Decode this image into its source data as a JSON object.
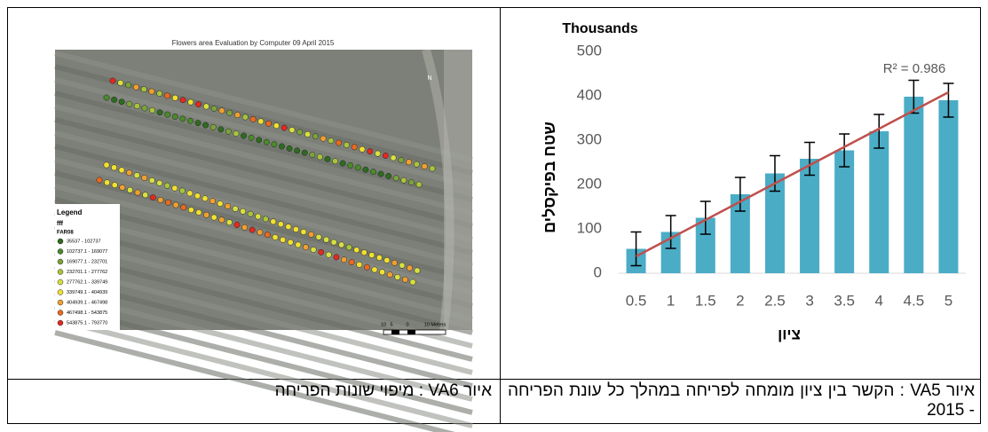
{
  "map": {
    "title": "Flowers area Evaluation by Computer 09 April 2015",
    "north": "N",
    "legend": {
      "title": "Legend",
      "layer": "fff",
      "field": "FAR08",
      "items": [
        "35537 - 102737",
        "102737.1 - 169077",
        "169077.1 - 232701",
        "232701.1 - 277762",
        "277762.1 - 339749",
        "339749.1 - 404939",
        "404939.1 - 467498",
        "467498.1 - 543875",
        "543875.1 - 793770"
      ]
    },
    "scale": [
      "10",
      "5",
      "0",
      "10 Meters"
    ]
  },
  "chart_data": {
    "type": "bar",
    "units": "Thousands",
    "y_label": "שטח בפיקסלים",
    "x_label": "ציון",
    "categories": [
      "0.5",
      "1",
      "1.5",
      "2",
      "2.5",
      "3",
      "3.5",
      "4",
      "4.5",
      "5"
    ],
    "values": [
      55,
      93,
      125,
      178,
      225,
      258,
      277,
      320,
      398,
      390
    ],
    "errors": [
      38,
      37,
      37,
      38,
      40,
      37,
      37,
      38,
      37,
      38
    ],
    "color": "#4bacc6",
    "trendline": {
      "values": [
        38,
        408
      ],
      "color": "#c0504d",
      "annotation": "R² = 0.986"
    },
    "ylim": [
      0,
      500
    ],
    "yticks": [
      0,
      100,
      200,
      300,
      400,
      500
    ]
  },
  "captions": [
    "איור VA5 : הקשר בין ציון מומחה לפריחה במהלך כל עונת הפריחה - 2015",
    "איור VA6 : מיפוי שונות הפריחה"
  ]
}
